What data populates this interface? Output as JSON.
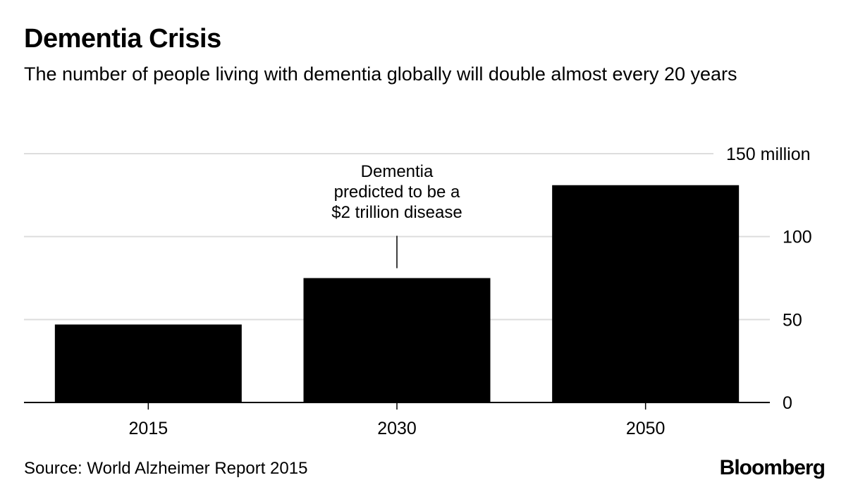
{
  "chart_data": {
    "type": "bar",
    "title": "Dementia Crisis",
    "subtitle": "The number of people living with dementia globally will double almost every 20 years",
    "categories": [
      "2015",
      "2030",
      "2050"
    ],
    "values": [
      47,
      75,
      131
    ],
    "ylim": [
      0,
      150
    ],
    "yticks": [
      {
        "value": 0,
        "label": "0"
      },
      {
        "value": 50,
        "label": "50"
      },
      {
        "value": 100,
        "label": "100"
      },
      {
        "value": 150,
        "label": "150 million"
      }
    ],
    "grid": true,
    "bar_color": "#000000",
    "grid_color": "#dddddd",
    "annotation": {
      "category": "2030",
      "lines": [
        "Dementia",
        "predicted to be a",
        "$2 trillion disease"
      ]
    },
    "source": "Source: World Alzheimer Report 2015"
  },
  "brand": "Bloomberg"
}
